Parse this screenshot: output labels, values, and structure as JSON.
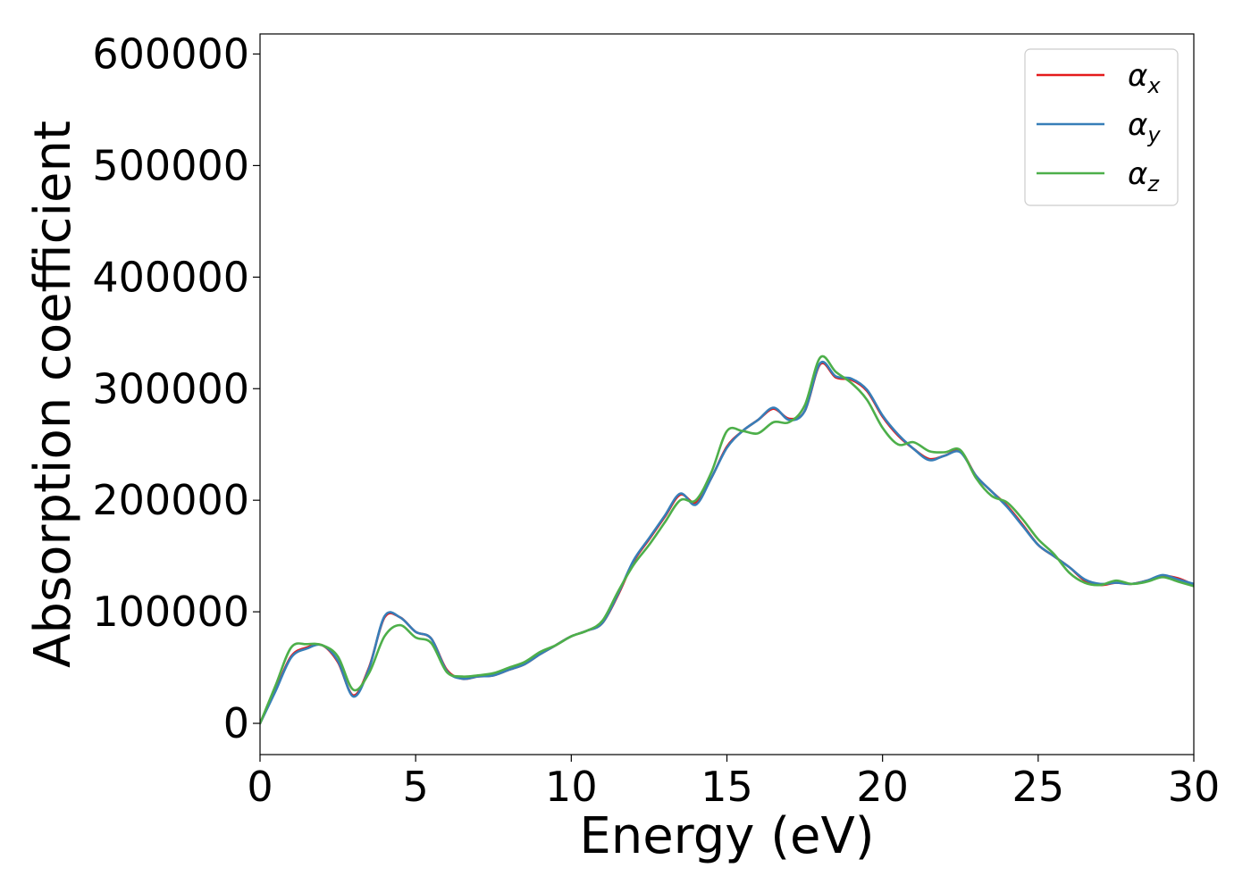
{
  "chart_data": {
    "type": "line",
    "title": "",
    "xlabel": "Energy (eV)",
    "ylabel": "Absorption coefficient",
    "xlim": [
      0,
      30
    ],
    "ylim": [
      -28000,
      618000
    ],
    "xticks": [
      0,
      5,
      10,
      15,
      20,
      25,
      30
    ],
    "yticks": [
      0,
      100000,
      200000,
      300000,
      400000,
      500000,
      600000
    ],
    "grid": false,
    "legend_position": "top-right",
    "series": [
      {
        "name": "αx",
        "base": "α",
        "sub": "x",
        "color": "#e41a1c",
        "x": [
          0,
          0.5,
          1,
          1.5,
          2,
          2.5,
          3,
          3.5,
          4,
          4.5,
          5,
          5.5,
          6,
          6.5,
          7,
          7.5,
          8,
          8.5,
          9,
          9.5,
          10,
          10.5,
          11,
          11.5,
          12,
          12.5,
          13,
          13.5,
          14,
          14.5,
          15,
          15.5,
          16,
          16.5,
          17,
          17.5,
          18,
          18.5,
          19,
          19.5,
          20,
          20.5,
          21,
          21.5,
          22,
          22.5,
          23,
          23.5,
          24,
          24.5,
          25,
          25.5,
          26,
          26.5,
          27,
          27.5,
          28,
          28.5,
          29,
          29.5,
          30
        ],
        "y": [
          0,
          30000,
          60000,
          68000,
          70000,
          55000,
          25000,
          50000,
          95000,
          95000,
          82000,
          76000,
          48000,
          40000,
          42000,
          43000,
          48000,
          53000,
          62000,
          70000,
          78000,
          83000,
          90000,
          115000,
          145000,
          165000,
          185000,
          205000,
          198000,
          220000,
          248000,
          262000,
          272000,
          282000,
          273000,
          280000,
          322000,
          310000,
          308000,
          298000,
          275000,
          258000,
          246000,
          237000,
          240000,
          244000,
          222000,
          208000,
          195000,
          178000,
          160000,
          150000,
          140000,
          128000,
          124000,
          126000,
          125000,
          128000,
          132000,
          130000,
          124000
        ]
      },
      {
        "name": "αy",
        "base": "α",
        "sub": "y",
        "color": "#377eb8",
        "x": [
          0,
          0.5,
          1,
          1.5,
          2,
          2.5,
          3,
          3.5,
          4,
          4.5,
          5,
          5.5,
          6,
          6.5,
          7,
          7.5,
          8,
          8.5,
          9,
          9.5,
          10,
          10.5,
          11,
          11.5,
          12,
          12.5,
          13,
          13.5,
          14,
          14.5,
          15,
          15.5,
          16,
          16.5,
          17,
          17.5,
          18,
          18.5,
          19,
          19.5,
          20,
          20.5,
          21,
          21.5,
          22,
          22.5,
          23,
          23.5,
          24,
          24.5,
          25,
          25.5,
          26,
          26.5,
          27,
          27.5,
          28,
          28.5,
          29,
          29.5,
          30
        ],
        "y": [
          0,
          29000,
          59000,
          67000,
          70000,
          56000,
          24000,
          49000,
          96000,
          95000,
          82000,
          76000,
          47000,
          40000,
          42000,
          43000,
          48000,
          53000,
          62000,
          70000,
          78000,
          83000,
          90000,
          116000,
          146000,
          166000,
          186000,
          206000,
          196000,
          220000,
          247000,
          262000,
          272000,
          283000,
          272000,
          280000,
          323000,
          311000,
          309000,
          299000,
          276000,
          259000,
          246000,
          236000,
          240000,
          243000,
          222000,
          208000,
          194000,
          177000,
          160000,
          150000,
          140000,
          129000,
          125000,
          126000,
          125000,
          128000,
          133000,
          129000,
          125000
        ]
      },
      {
        "name": "αz",
        "base": "α",
        "sub": "z",
        "color": "#4daf4a",
        "x": [
          0,
          0.5,
          1,
          1.5,
          2,
          2.5,
          3,
          3.5,
          4,
          4.5,
          5,
          5.5,
          6,
          6.5,
          7,
          7.5,
          8,
          8.5,
          9,
          9.5,
          10,
          10.5,
          11,
          11.5,
          12,
          12.5,
          13,
          13.5,
          14,
          14.5,
          15,
          15.5,
          16,
          16.5,
          17,
          17.5,
          18,
          18.5,
          19,
          19.5,
          20,
          20.5,
          21,
          21.5,
          22,
          22.5,
          23,
          23.5,
          24,
          24.5,
          25,
          25.5,
          26,
          26.5,
          27,
          27.5,
          28,
          28.5,
          29,
          29.5,
          30
        ],
        "y": [
          0,
          34000,
          68000,
          71000,
          70000,
          60000,
          30000,
          45000,
          78000,
          88000,
          77000,
          72000,
          46000,
          42000,
          43000,
          45000,
          50000,
          55000,
          64000,
          70000,
          78000,
          83000,
          92000,
          118000,
          142000,
          160000,
          180000,
          200000,
          200000,
          225000,
          262000,
          262000,
          260000,
          270000,
          270000,
          285000,
          328000,
          315000,
          305000,
          290000,
          265000,
          250000,
          252000,
          244000,
          243000,
          245000,
          220000,
          204000,
          198000,
          183000,
          165000,
          152000,
          135000,
          126000,
          124000,
          128000,
          125000,
          127000,
          131000,
          127000,
          123000
        ]
      }
    ]
  }
}
